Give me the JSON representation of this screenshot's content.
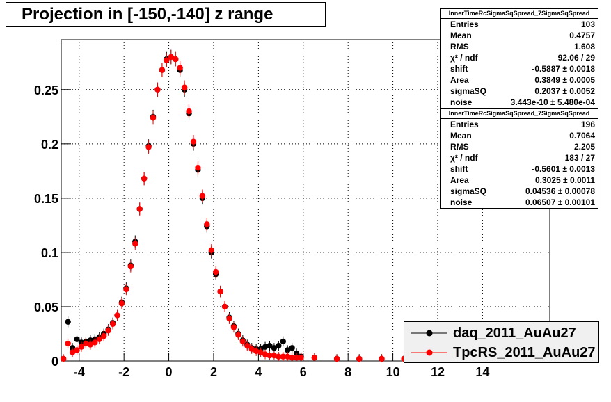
{
  "title": "Projection in [-150,-140] z range",
  "chart_data": {
    "type": "scatter",
    "xlim": [
      -4.8,
      17
    ],
    "ylim": [
      0,
      0.296
    ],
    "x_ticks": [
      "-4",
      "-2",
      "0",
      "2",
      "4",
      "6",
      "8",
      "10",
      "12",
      "14"
    ],
    "x_tick_values": [
      -4,
      -2,
      0,
      2,
      4,
      6,
      8,
      10,
      12,
      14
    ],
    "y_ticks": [
      "0",
      "0.05",
      "0.1",
      "0.15",
      "0.2",
      "0.25"
    ],
    "y_tick_values": [
      0,
      0.05,
      0.1,
      0.15,
      0.2,
      0.25
    ],
    "grid": true,
    "legend_position": "bottom-right",
    "series": [
      {
        "name": "daq_2011_AuAu27",
        "color": "#000000",
        "x": [
          -4.5,
          -4.3,
          -4.1,
          -3.9,
          -3.7,
          -3.5,
          -3.3,
          -3.1,
          -2.9,
          -2.7,
          -2.5,
          -2.3,
          -2.1,
          -1.9,
          -1.7,
          -1.5,
          -1.3,
          -1.1,
          -0.9,
          -0.7,
          -0.5,
          -0.3,
          -0.1,
          0.1,
          0.3,
          0.5,
          0.7,
          0.9,
          1.1,
          1.3,
          1.5,
          1.7,
          1.9,
          2.1,
          2.3,
          2.5,
          2.7,
          2.9,
          3.1,
          3.3,
          3.5,
          3.7,
          3.9,
          4.1,
          4.3,
          4.5,
          4.7,
          4.9,
          5.1,
          5.3,
          5.5,
          5.7,
          5.9,
          6.5,
          7.5,
          8.5,
          9.5,
          10.5,
          11.5,
          12.5,
          13.5,
          14.5,
          15.5
        ],
        "y": [
          0.036,
          0.012,
          0.02,
          0.017,
          0.018,
          0.019,
          0.02,
          0.022,
          0.025,
          0.029,
          0.035,
          0.042,
          0.054,
          0.067,
          0.088,
          0.11,
          0.14,
          0.168,
          0.198,
          0.225,
          0.25,
          0.268,
          0.278,
          0.28,
          0.278,
          0.268,
          0.25,
          0.228,
          0.2,
          0.176,
          0.15,
          0.124,
          0.1,
          0.08,
          0.064,
          0.05,
          0.04,
          0.032,
          0.025,
          0.019,
          0.015,
          0.012,
          0.011,
          0.011,
          0.013,
          0.014,
          0.012,
          0.014,
          0.018,
          0.01,
          0.012,
          0.007,
          0.004,
          0.003,
          0.002,
          0.002,
          0.002,
          0.002,
          0.002,
          0.002,
          0.002,
          0.002,
          0.002
        ]
      },
      {
        "name": "TpcRS_2011_AuAu27",
        "color": "#ff0000",
        "x": [
          -4.7,
          -4.5,
          -4.3,
          -4.1,
          -3.9,
          -3.7,
          -3.5,
          -3.3,
          -3.1,
          -2.9,
          -2.7,
          -2.5,
          -2.3,
          -2.1,
          -1.9,
          -1.7,
          -1.5,
          -1.3,
          -1.1,
          -0.9,
          -0.7,
          -0.5,
          -0.3,
          -0.1,
          0.1,
          0.3,
          0.5,
          0.7,
          0.9,
          1.1,
          1.3,
          1.5,
          1.7,
          1.9,
          2.1,
          2.3,
          2.5,
          2.7,
          2.9,
          3.1,
          3.3,
          3.5,
          3.7,
          3.9,
          4.1,
          4.3,
          4.5,
          4.7,
          4.9,
          5.1,
          5.3,
          5.5,
          5.7,
          5.9,
          6.5,
          7.5,
          8.5,
          9.5,
          10.5,
          11.5,
          12.5,
          13.5,
          14.5,
          15.5
        ],
        "y": [
          0.002,
          0.016,
          0.008,
          0.01,
          0.013,
          0.016,
          0.015,
          0.017,
          0.02,
          0.023,
          0.028,
          0.034,
          0.042,
          0.053,
          0.066,
          0.087,
          0.108,
          0.14,
          0.168,
          0.197,
          0.224,
          0.25,
          0.268,
          0.277,
          0.28,
          0.278,
          0.27,
          0.252,
          0.23,
          0.202,
          0.178,
          0.152,
          0.126,
          0.102,
          0.082,
          0.064,
          0.05,
          0.039,
          0.031,
          0.024,
          0.018,
          0.014,
          0.011,
          0.009,
          0.008,
          0.006,
          0.005,
          0.005,
          0.004,
          0.004,
          0.004,
          0.003,
          0.003,
          0.003,
          0.003,
          0.002,
          0.002,
          0.002,
          0.002,
          0.002,
          0.002,
          0.002,
          0.002,
          0.002
        ]
      }
    ]
  },
  "stats": [
    {
      "name": "InnerTimeRcSigmaSqSpread_7SigmaSqSpread",
      "rows": [
        {
          "k": "Entries",
          "v": "103"
        },
        {
          "k": "Mean",
          "v": "0.4757"
        },
        {
          "k": "RMS",
          "v": "1.608"
        },
        {
          "k": "χ² / ndf",
          "v": "92.06 / 29"
        },
        {
          "k": "shift",
          "v": "-0.5887 ± 0.0018"
        },
        {
          "k": "Area",
          "v": "0.3849 ± 0.0005"
        },
        {
          "k": "sigmaSQ",
          "v": "0.2037 ± 0.0052"
        },
        {
          "k": "noise",
          "v": "3.443e-10 ± 5.480e-04"
        }
      ]
    },
    {
      "name": "InnerTimeRcSigmaSqSpread_7SigmaSqSpread",
      "rows": [
        {
          "k": "Entries",
          "v": "196"
        },
        {
          "k": "Mean",
          "v": "0.7064"
        },
        {
          "k": "RMS",
          "v": "2.205"
        },
        {
          "k": "χ² / ndf",
          "v": "183 / 27"
        },
        {
          "k": "shift",
          "v": "-0.5601 ± 0.0013"
        },
        {
          "k": "Area",
          "v": "0.3025 ± 0.0011"
        },
        {
          "k": "sigmaSQ",
          "v": "0.04536 ± 0.00078"
        },
        {
          "k": "noise",
          "v": "0.06507 ± 0.00101"
        }
      ]
    }
  ],
  "legend": [
    {
      "label": "daq_2011_AuAu27",
      "color": "#000000"
    },
    {
      "label": "TpcRS_2011_AuAu27",
      "color": "#ff0000"
    }
  ]
}
